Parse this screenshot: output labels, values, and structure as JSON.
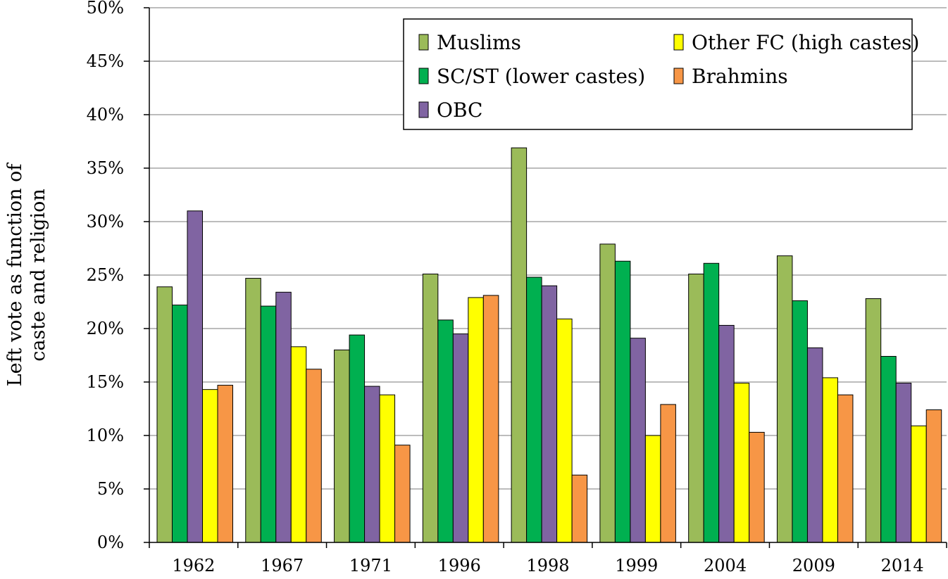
{
  "chart_data": {
    "type": "bar",
    "title": "",
    "xlabel": "",
    "ylabel_lines": [
      "Left vote as function of",
      "caste and religion"
    ],
    "ylim": [
      0,
      50
    ],
    "yticks": [
      0,
      5,
      10,
      15,
      20,
      25,
      30,
      35,
      40,
      45,
      50
    ],
    "ytick_labels": [
      "0%",
      "5%",
      "10%",
      "15%",
      "20%",
      "25%",
      "30%",
      "35%",
      "40%",
      "45%",
      "50%"
    ],
    "categories": [
      "1962",
      "1967",
      "1971",
      "1996",
      "1998",
      "1999",
      "2004",
      "2009",
      "2014"
    ],
    "grid": true,
    "legend_position": "top-right",
    "series": [
      {
        "name": "Muslims",
        "color": "#9BBB59",
        "values": [
          23.9,
          24.7,
          18.0,
          25.1,
          36.9,
          27.9,
          25.1,
          26.8,
          22.8
        ]
      },
      {
        "name": "SC/ST (lower castes)",
        "color": "#00B050",
        "values": [
          22.2,
          22.1,
          19.4,
          20.8,
          24.8,
          26.3,
          26.1,
          22.6,
          17.4
        ]
      },
      {
        "name": "OBC",
        "color": "#8064A2",
        "values": [
          31.0,
          23.4,
          14.6,
          19.5,
          24.0,
          19.1,
          20.3,
          18.2,
          14.9
        ]
      },
      {
        "name": "Other FC (high castes)",
        "color": "#FFFF00",
        "values": [
          14.3,
          18.3,
          13.8,
          22.9,
          20.9,
          10.0,
          14.9,
          15.4,
          10.9
        ]
      },
      {
        "name": "Brahmins",
        "color": "#F79646",
        "values": [
          14.7,
          16.2,
          9.1,
          23.1,
          6.3,
          12.9,
          10.3,
          13.8,
          12.4
        ]
      }
    ],
    "legend_layout": [
      [
        0,
        3
      ],
      [
        1,
        4
      ],
      [
        2
      ]
    ]
  }
}
